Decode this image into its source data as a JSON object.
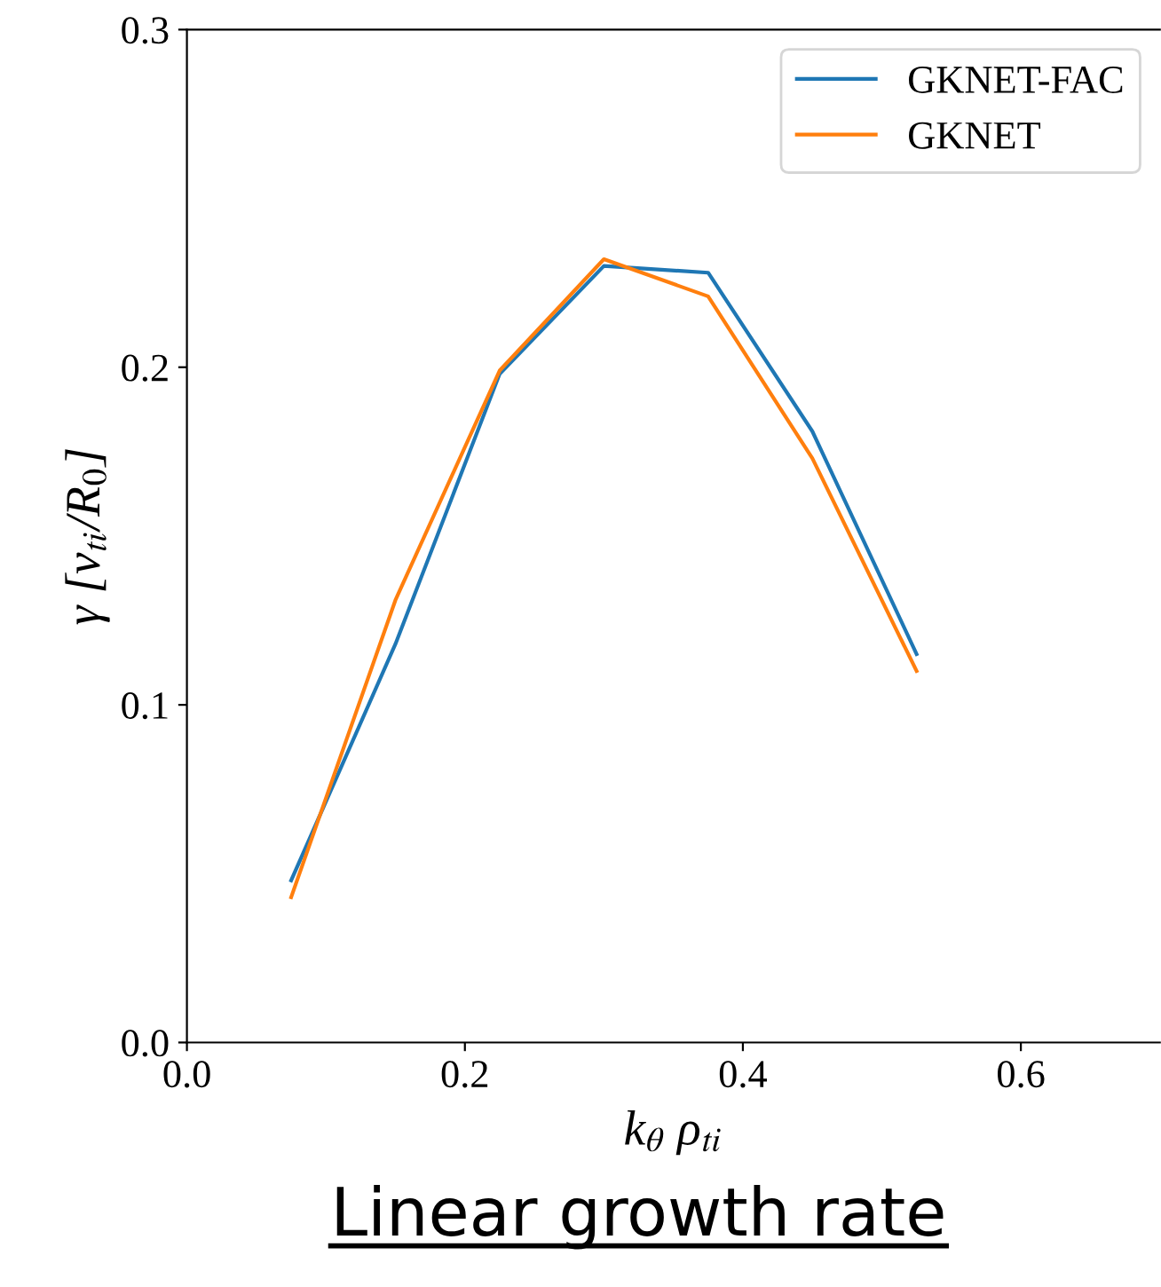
{
  "chart_data": {
    "type": "line",
    "title": "Linear growth rate",
    "xlabel": "k$_{θ}$ ρ$_{ti}$",
    "ylabel": "γ [v$_{ti}$/R$_{0}$]",
    "x": [
      0.075,
      0.15,
      0.225,
      0.3,
      0.375,
      0.45,
      0.525
    ],
    "series": [
      {
        "name": "GKNET-FAC",
        "color": "#1f77b4",
        "values": [
          0.048,
          0.118,
          0.198,
          0.23,
          0.228,
          0.181,
          0.115
        ]
      },
      {
        "name": "GKNET",
        "color": "#ff7f0e",
        "values": [
          0.043,
          0.131,
          0.199,
          0.232,
          0.221,
          0.173,
          0.11
        ]
      }
    ],
    "xlim": [
      0,
      0.7
    ],
    "ylim": [
      0,
      0.3
    ],
    "xticks": [
      {
        "value": 0,
        "label": "0.0"
      },
      0.2,
      0.4,
      0.6
    ],
    "yticks": [
      {
        "value": 0,
        "label": "0.0"
      },
      0.1,
      0.2,
      0.3
    ],
    "legend": "top right",
    "grid": false,
    "marker": "none",
    "line_style": "solid"
  }
}
